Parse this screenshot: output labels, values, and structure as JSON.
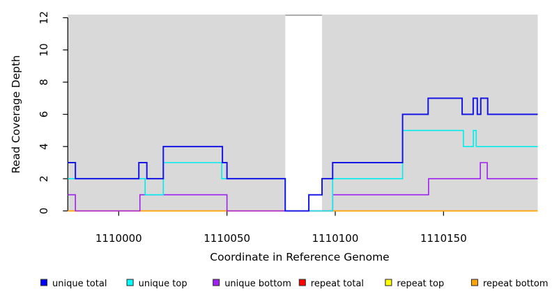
{
  "chart_data": {
    "type": "line",
    "step": true,
    "title": "",
    "xlabel": "Coordinate in Reference Genome",
    "ylabel": "Read Coverage Depth",
    "xlim": [
      1109976.5,
      1110193.5
    ],
    "ylim": [
      0,
      12
    ],
    "x_ticks": [
      1110000,
      1110050,
      1110100,
      1110150
    ],
    "y_ticks": [
      0,
      2,
      4,
      6,
      8,
      10,
      12
    ],
    "grid": false,
    "legend_position": "bottom",
    "panel_color": "#d9d9d9",
    "gap_edge_color": "#9a9a9a",
    "background_regions": [
      {
        "from": 1109976.5,
        "to": 1110076.9,
        "color": "#d9d9d9"
      },
      {
        "from": 1110093.9,
        "to": 1110193.5,
        "color": "#d9d9d9"
      }
    ],
    "series": [
      {
        "name": "repeat total",
        "color": "#ff0000",
        "width": 1.2,
        "points": [
          [
            1109976.5,
            0
          ],
          [
            1110193.5,
            0
          ]
        ]
      },
      {
        "name": "repeat top",
        "color": "#ffff00",
        "width": 1.2,
        "points": [
          [
            1109976.5,
            0
          ],
          [
            1110193.5,
            0
          ]
        ]
      },
      {
        "name": "repeat bottom",
        "color": "#ffa500",
        "width": 1.8,
        "points": [
          [
            1109976.5,
            0
          ],
          [
            1110193.5,
            0
          ]
        ]
      },
      {
        "name": "unique bottom",
        "color": "#a020f0",
        "width": 1.6,
        "points": [
          [
            1109976.5,
            1
          ],
          [
            1109980,
            0
          ],
          [
            1110009.8,
            1
          ],
          [
            1110050,
            0
          ],
          [
            1110098.8,
            1
          ],
          [
            1110143.1,
            2
          ],
          [
            1110167,
            3
          ],
          [
            1110170.2,
            2
          ],
          [
            1110193.5,
            2
          ]
        ]
      },
      {
        "name": "unique top",
        "color": "#00eded",
        "width": 1.6,
        "points": [
          [
            1109976.5,
            2
          ],
          [
            1110012.2,
            1
          ],
          [
            1110020.6,
            3
          ],
          [
            1110047.6,
            2
          ],
          [
            1110076.9,
            0
          ],
          [
            1110098.8,
            2
          ],
          [
            1110131.1,
            5
          ],
          [
            1110159.2,
            4
          ],
          [
            1110163.8,
            5
          ],
          [
            1110165.1,
            4
          ],
          [
            1110193.5,
            4
          ]
        ]
      },
      {
        "name": "unique total",
        "color": "#1515e6",
        "width": 2,
        "points": [
          [
            1109976.5,
            3
          ],
          [
            1109980,
            2
          ],
          [
            1110009.3,
            3
          ],
          [
            1110013,
            2
          ],
          [
            1110020.6,
            4
          ],
          [
            1110047.9,
            3
          ],
          [
            1110050,
            2
          ],
          [
            1110076.9,
            0
          ],
          [
            1110087.8,
            1
          ],
          [
            1110093.9,
            2
          ],
          [
            1110098.8,
            3
          ],
          [
            1110131.1,
            6
          ],
          [
            1110142.9,
            7
          ],
          [
            1110158.6,
            6
          ],
          [
            1110163.7,
            7
          ],
          [
            1110165.6,
            6
          ],
          [
            1110167.2,
            7
          ],
          [
            1110170.4,
            6
          ],
          [
            1110193.5,
            6
          ]
        ]
      }
    ],
    "legend": [
      {
        "label": "unique total",
        "color": "#0000ff"
      },
      {
        "label": "unique top",
        "color": "#00ffff"
      },
      {
        "label": "unique bottom",
        "color": "#a020f0"
      },
      {
        "label": "repeat total",
        "color": "#ff0000"
      },
      {
        "label": "repeat top",
        "color": "#ffff00"
      },
      {
        "label": "repeat bottom",
        "color": "#ffa500"
      }
    ]
  }
}
